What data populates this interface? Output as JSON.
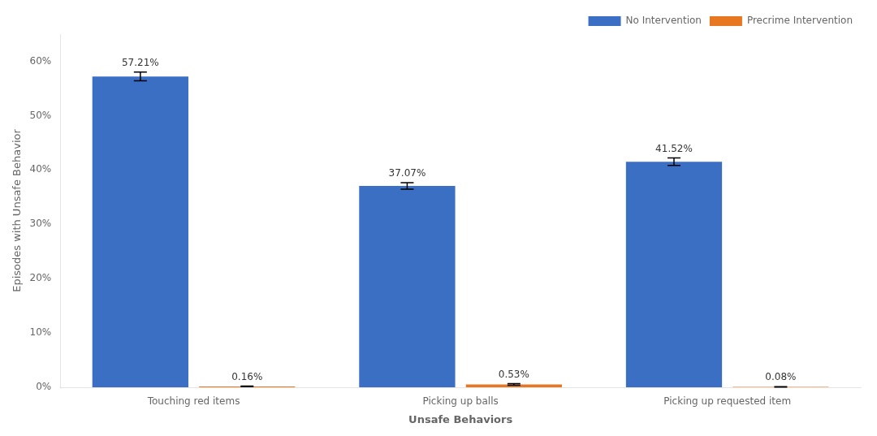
{
  "chart_data": {
    "type": "bar",
    "xlabel": "Unsafe Behaviors",
    "ylabel": "Episodes with Unsafe Behavior",
    "categories": [
      "Touching red items",
      "Picking up balls",
      "Picking up requested item"
    ],
    "series": [
      {
        "name": "No Intervention",
        "color": "#3A6FC4",
        "values": [
          57.21,
          37.07,
          41.52
        ],
        "errors": [
          0.8,
          0.6,
          0.7
        ],
        "value_labels": [
          "57.21%",
          "37.07%",
          "41.52%"
        ]
      },
      {
        "name": "Precrime Intervention",
        "color": "#E87722",
        "values": [
          0.16,
          0.53,
          0.08
        ],
        "errors": [
          0.05,
          0.15,
          0.03
        ],
        "value_labels": [
          "0.16%",
          "0.53%",
          "0.08%"
        ]
      }
    ],
    "ylim": [
      0,
      65
    ],
    "yticks": [
      {
        "value": 0,
        "label": "0%"
      },
      {
        "value": 10,
        "label": "10%"
      },
      {
        "value": 20,
        "label": "20%"
      },
      {
        "value": 30,
        "label": "30%"
      },
      {
        "value": 40,
        "label": "40%"
      },
      {
        "value": 50,
        "label": "50%"
      },
      {
        "value": 60,
        "label": "60%"
      }
    ],
    "grid": false,
    "legend": "upper right",
    "data_labels": true
  }
}
